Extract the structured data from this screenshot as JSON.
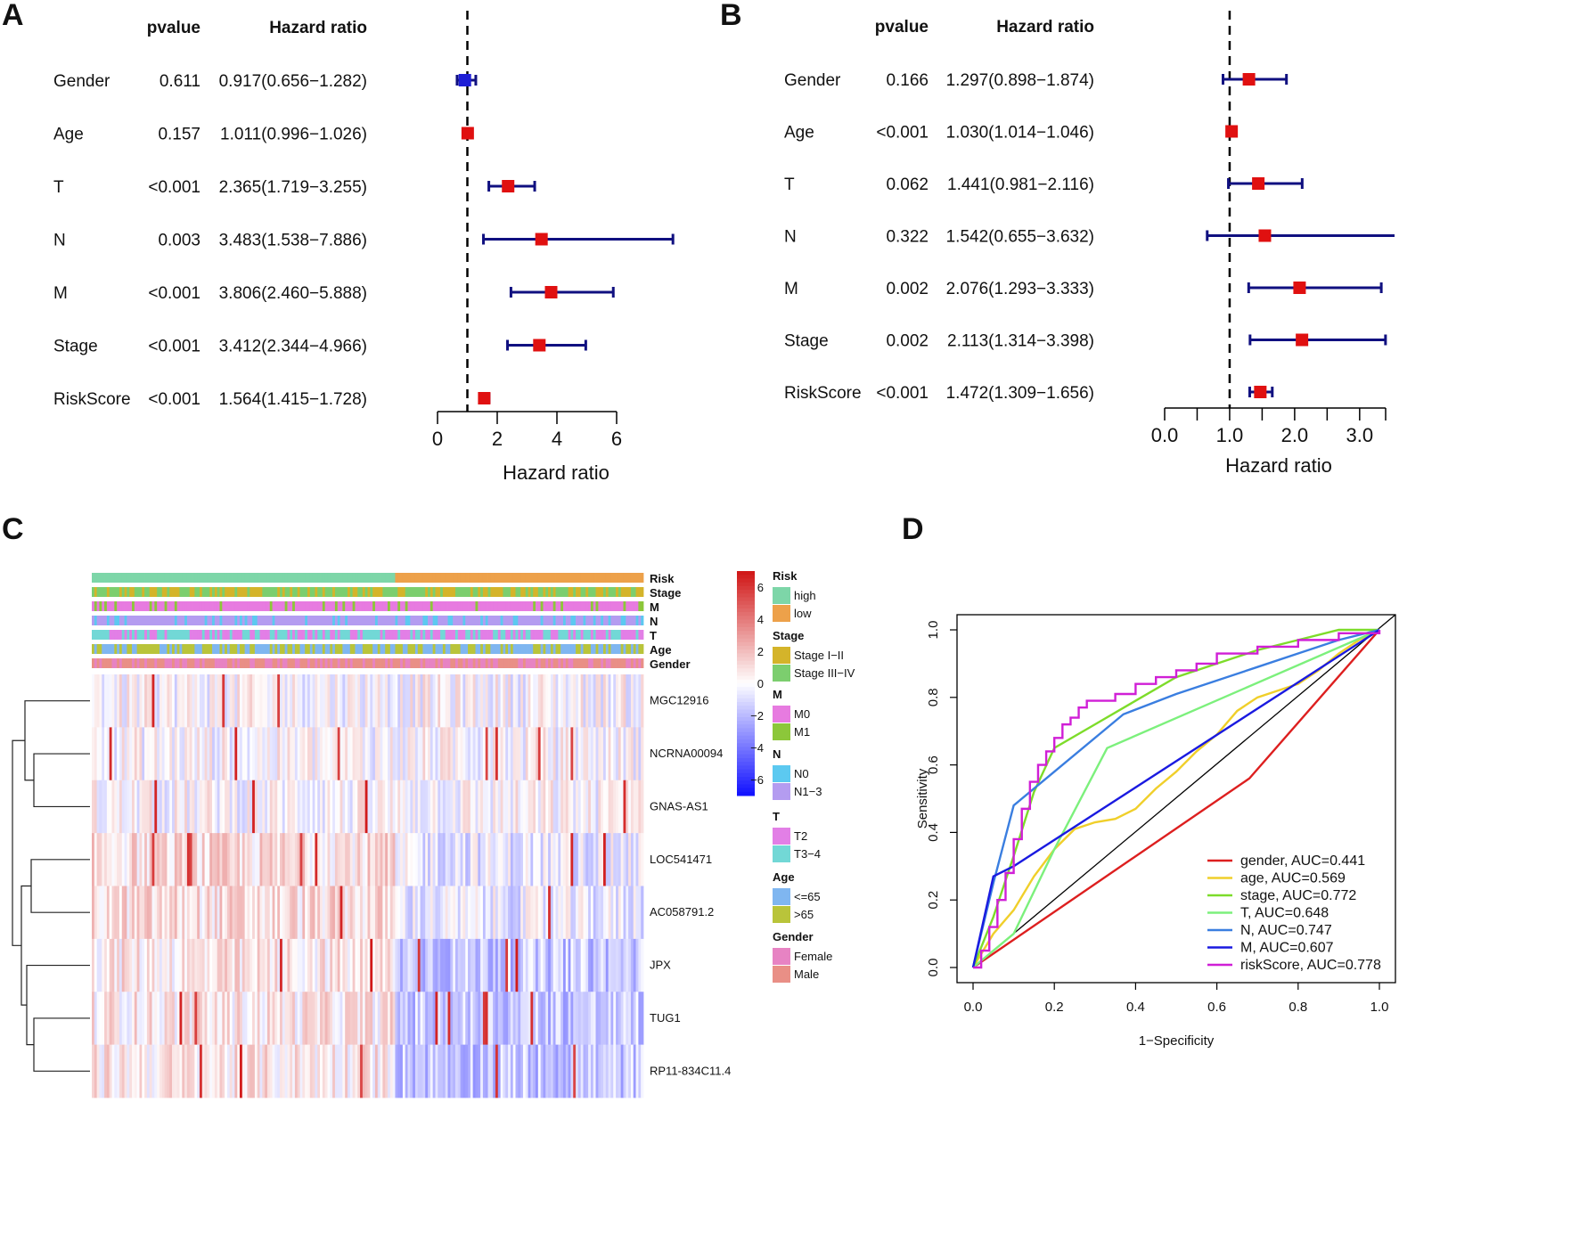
{
  "panels": {
    "A": {
      "letter": "A"
    },
    "B": {
      "letter": "B"
    },
    "C": {
      "letter": "C"
    },
    "D": {
      "letter": "D"
    }
  },
  "forest": [
    {
      "panel": "A",
      "header_pvalue": "pvalue",
      "header_hr": "Hazard ratio",
      "xlabel": "Hazard ratio",
      "ref_line": 1,
      "xlim": [
        0,
        6
      ],
      "tick_values": [
        0,
        2,
        4,
        6
      ],
      "tick_labels": [
        "0",
        "2",
        "4",
        "6"
      ],
      "rows": [
        {
          "name": "Gender",
          "p": "0.611",
          "hr_text": "0.917(0.656−1.282)",
          "hr": 0.917,
          "lo": 0.656,
          "hi": 1.282,
          "color": "#1f1fd6"
        },
        {
          "name": "Age",
          "p": "0.157",
          "hr_text": "1.011(0.996−1.026)",
          "hr": 1.011,
          "lo": 0.996,
          "hi": 1.026,
          "color": "#e01010"
        },
        {
          "name": "T",
          "p": "<0.001",
          "hr_text": "2.365(1.719−3.255)",
          "hr": 2.365,
          "lo": 1.719,
          "hi": 3.255,
          "color": "#e01010"
        },
        {
          "name": "N",
          "p": "0.003",
          "hr_text": "3.483(1.538−7.886)",
          "hr": 3.483,
          "lo": 1.538,
          "hi": 7.886,
          "color": "#e01010"
        },
        {
          "name": "M",
          "p": "<0.001",
          "hr_text": "3.806(2.460−5.888)",
          "hr": 3.806,
          "lo": 2.46,
          "hi": 5.888,
          "color": "#e01010"
        },
        {
          "name": "Stage",
          "p": "<0.001",
          "hr_text": "3.412(2.344−4.966)",
          "hr": 3.412,
          "lo": 2.344,
          "hi": 4.966,
          "color": "#e01010"
        },
        {
          "name": "RiskScore",
          "p": "<0.001",
          "hr_text": "1.564(1.415−1.728)",
          "hr": 1.564,
          "lo": 1.415,
          "hi": 1.728,
          "color": "#e01010"
        }
      ]
    },
    {
      "panel": "B",
      "header_pvalue": "pvalue",
      "header_hr": "Hazard ratio",
      "xlabel": "Hazard ratio",
      "ref_line": 1,
      "xlim": [
        0,
        3.4
      ],
      "tick_values": [
        0,
        0.5,
        1,
        1.5,
        2,
        2.5,
        3,
        3.4
      ],
      "tick_labels": [
        "0.0",
        "",
        "1.0",
        "",
        "2.0",
        "",
        "3.0",
        ""
      ],
      "rows": [
        {
          "name": "Gender",
          "p": "0.166",
          "hr_text": "1.297(0.898−1.874)",
          "hr": 1.297,
          "lo": 0.898,
          "hi": 1.874,
          "color": "#e01010"
        },
        {
          "name": "Age",
          "p": "<0.001",
          "hr_text": "1.030(1.014−1.046)",
          "hr": 1.03,
          "lo": 1.014,
          "hi": 1.046,
          "color": "#e01010"
        },
        {
          "name": "T",
          "p": "0.062",
          "hr_text": "1.441(0.981−2.116)",
          "hr": 1.441,
          "lo": 0.981,
          "hi": 2.116,
          "color": "#e01010"
        },
        {
          "name": "N",
          "p": "0.322",
          "hr_text": "1.542(0.655−3.632)",
          "hr": 1.542,
          "lo": 0.655,
          "hi": 3.632,
          "color": "#e01010"
        },
        {
          "name": "M",
          "p": "0.002",
          "hr_text": "2.076(1.293−3.333)",
          "hr": 2.076,
          "lo": 1.293,
          "hi": 3.333,
          "color": "#e01010"
        },
        {
          "name": "Stage",
          "p": "0.002",
          "hr_text": "2.113(1.314−3.398)",
          "hr": 2.113,
          "lo": 1.314,
          "hi": 3.398,
          "color": "#e01010"
        },
        {
          "name": "RiskScore",
          "p": "<0.001",
          "hr_text": "1.472(1.309−1.656)",
          "hr": 1.472,
          "lo": 1.309,
          "hi": 1.656,
          "color": "#e01010"
        }
      ]
    }
  ],
  "heatmap": {
    "annotation_rows": [
      "Risk",
      "Stage",
      "M",
      "N",
      "T",
      "Age",
      "Gender"
    ],
    "genes": [
      "MGC12916",
      "NCRNA00094",
      "GNAS-AS1",
      "LOC541471",
      "AC058791.2",
      "JPX",
      "TUG1",
      "RP11-834C11.4"
    ],
    "risk_split_fraction": 0.55,
    "color_scale": {
      "tick_values": [
        6,
        4,
        2,
        0,
        -2,
        -4,
        -6
      ],
      "tick_labels": [
        "6",
        "4",
        "2",
        "0",
        "−2",
        "−4",
        "−6"
      ],
      "range": [
        -7,
        7
      ],
      "low_color": "#1010ff",
      "mid_color": "#ffffff",
      "high_color": "#d01515"
    },
    "legend": [
      {
        "title": "Risk",
        "items": [
          {
            "label": "high",
            "color": "#7dd6a8"
          },
          {
            "label": "low",
            "color": "#eda14a"
          }
        ]
      },
      {
        "title": "Stage",
        "items": [
          {
            "label": "Stage I−II",
            "color": "#d4b42a"
          },
          {
            "label": "Stage III−IV",
            "color": "#7cce6e"
          }
        ]
      },
      {
        "title": "M",
        "items": [
          {
            "label": "M0",
            "color": "#e77be0"
          },
          {
            "label": "M1",
            "color": "#8cc73a"
          }
        ]
      },
      {
        "title": "N",
        "items": [
          {
            "label": "N0",
            "color": "#5cc9f0"
          },
          {
            "label": "N1−3",
            "color": "#b49cf0"
          }
        ]
      },
      {
        "title": "T",
        "items": [
          {
            "label": "T2",
            "color": "#e27fe6"
          },
          {
            "label": "T3−4",
            "color": "#72d8d6"
          }
        ]
      },
      {
        "title": "Age",
        "items": [
          {
            "label": "<=65",
            "color": "#7fb6f0"
          },
          {
            "label": ">65",
            "color": "#b9c43a"
          }
        ]
      },
      {
        "title": "Gender",
        "items": [
          {
            "label": "Female",
            "color": "#e783c3"
          },
          {
            "label": "Male",
            "color": "#e98f86"
          }
        ]
      }
    ]
  },
  "chart_data": [
    {
      "type": "forest",
      "title": "A",
      "xlabel": "Hazard ratio",
      "categories": [
        "Gender",
        "Age",
        "T",
        "N",
        "M",
        "Stage",
        "RiskScore"
      ],
      "hr": [
        0.917,
        1.011,
        2.365,
        3.483,
        3.806,
        3.412,
        1.564
      ],
      "ci_low": [
        0.656,
        0.996,
        1.719,
        1.538,
        2.46,
        2.344,
        1.415
      ],
      "ci_high": [
        1.282,
        1.026,
        3.255,
        7.886,
        5.888,
        4.966,
        1.728
      ],
      "pvalue": [
        "0.611",
        "0.157",
        "<0.001",
        "0.003",
        "<0.001",
        "<0.001",
        "<0.001"
      ],
      "xlim": [
        0,
        6
      ]
    },
    {
      "type": "forest",
      "title": "B",
      "xlabel": "Hazard ratio",
      "categories": [
        "Gender",
        "Age",
        "T",
        "N",
        "M",
        "Stage",
        "RiskScore"
      ],
      "hr": [
        1.297,
        1.03,
        1.441,
        1.542,
        2.076,
        2.113,
        1.472
      ],
      "ci_low": [
        0.898,
        1.014,
        0.981,
        0.655,
        1.293,
        1.314,
        1.309
      ],
      "ci_high": [
        1.874,
        1.046,
        2.116,
        3.632,
        3.333,
        3.398,
        1.656
      ],
      "pvalue": [
        "0.166",
        "<0.001",
        "0.062",
        "0.322",
        "0.002",
        "0.002",
        "<0.001"
      ],
      "xlim": [
        0,
        3.4
      ]
    },
    {
      "type": "heatmap",
      "title": "C",
      "rows": [
        "MGC12916",
        "NCRNA00094",
        "GNAS-AS1",
        "LOC541471",
        "AC058791.2",
        "JPX",
        "TUG1",
        "RP11-834C11.4"
      ],
      "annotations": [
        "Risk",
        "Stage",
        "M",
        "N",
        "T",
        "Age",
        "Gender"
      ],
      "value_range": [
        -7,
        7
      ]
    },
    {
      "type": "line",
      "title": "D",
      "xlabel": "1−Specificity",
      "ylabel": "Sensitivity",
      "xlim": [
        0,
        1
      ],
      "ylim": [
        0,
        1
      ],
      "tick_values": [
        0,
        0.2,
        0.4,
        0.6,
        0.8,
        1
      ],
      "tick_labels": [
        "0.0",
        "0.2",
        "0.4",
        "0.6",
        "0.8",
        "1.0"
      ],
      "series": [
        {
          "name": "gender, AUC=0.441",
          "color": "#dd1f1f",
          "x": [
            0,
            0.68,
            1
          ],
          "y": [
            0,
            0.56,
            1
          ]
        },
        {
          "name": "age, AUC=0.569",
          "color": "#f0cf2a",
          "x": [
            0,
            0.05,
            0.1,
            0.15,
            0.2,
            0.25,
            0.3,
            0.35,
            0.4,
            0.45,
            0.5,
            0.55,
            0.6,
            0.65,
            0.7,
            0.75,
            0.8,
            0.85,
            0.9,
            0.95,
            1
          ],
          "y": [
            0,
            0.1,
            0.17,
            0.27,
            0.35,
            0.41,
            0.43,
            0.44,
            0.47,
            0.53,
            0.58,
            0.64,
            0.69,
            0.76,
            0.8,
            0.82,
            0.84,
            0.88,
            0.93,
            0.97,
            1
          ]
        },
        {
          "name": "stage, AUC=0.772",
          "color": "#7ddc2a",
          "x": [
            0,
            0.05,
            0.1,
            0.15,
            0.2,
            0.3,
            0.4,
            0.5,
            0.6,
            0.7,
            0.8,
            0.9,
            1
          ],
          "y": [
            0,
            0.15,
            0.33,
            0.52,
            0.65,
            0.72,
            0.79,
            0.86,
            0.9,
            0.94,
            0.97,
            1,
            1
          ]
        },
        {
          "name": "T, AUC=0.648",
          "color": "#7cf07c",
          "x": [
            0,
            0.1,
            0.2,
            0.33,
            1
          ],
          "y": [
            0,
            0.1,
            0.35,
            0.65,
            1
          ]
        },
        {
          "name": "N, AUC=0.747",
          "color": "#3a7ee0",
          "x": [
            0,
            0.05,
            0.1,
            0.2,
            0.37,
            0.5,
            0.6,
            0.7,
            0.8,
            0.9,
            1
          ],
          "y": [
            0,
            0.25,
            0.48,
            0.58,
            0.75,
            0.81,
            0.85,
            0.89,
            0.93,
            0.97,
            1
          ]
        },
        {
          "name": "M, AUC=0.607",
          "color": "#1a1ae0",
          "x": [
            0,
            0.05,
            0.1,
            1
          ],
          "y": [
            0,
            0.27,
            0.3,
            1
          ]
        },
        {
          "name": "riskScore, AUC=0.778",
          "color": "#d01fd6",
          "x": [
            0,
            0.02,
            0.04,
            0.06,
            0.08,
            0.1,
            0.12,
            0.14,
            0.16,
            0.18,
            0.2,
            0.22,
            0.24,
            0.26,
            0.28,
            0.3,
            0.35,
            0.4,
            0.45,
            0.5,
            0.55,
            0.6,
            0.7,
            0.8,
            0.9,
            1
          ],
          "y": [
            0,
            0.05,
            0.12,
            0.2,
            0.28,
            0.38,
            0.47,
            0.55,
            0.6,
            0.64,
            0.68,
            0.72,
            0.74,
            0.77,
            0.79,
            0.79,
            0.81,
            0.84,
            0.86,
            0.88,
            0.9,
            0.93,
            0.95,
            0.97,
            0.99,
            1
          ]
        }
      ]
    }
  ]
}
